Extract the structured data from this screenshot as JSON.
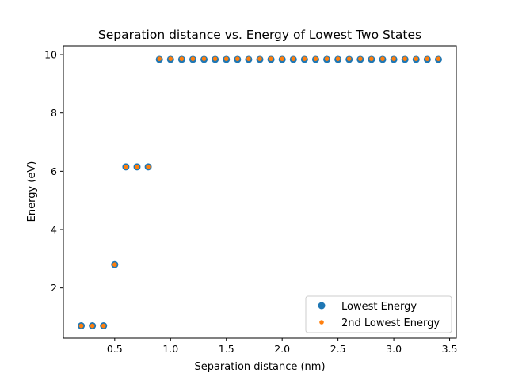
{
  "chart_data": {
    "type": "scatter",
    "title": "Separation distance vs. Energy of Lowest Two States",
    "xlabel": "Separation distance (nm)",
    "ylabel": "Energy (eV)",
    "xlim": [
      0.04,
      3.56
    ],
    "ylim": [
      0.28,
      10.3
    ],
    "xticks": [
      0.5,
      1.0,
      1.5,
      2.0,
      2.5,
      3.0,
      3.5
    ],
    "xtick_labels": [
      "0.5",
      "1.0",
      "1.5",
      "2.0",
      "2.5",
      "3.0",
      "3.5"
    ],
    "yticks": [
      2,
      4,
      6,
      8,
      10
    ],
    "ytick_labels": [
      "2",
      "4",
      "6",
      "8",
      "10"
    ],
    "grid": false,
    "legend_position": "lower-right",
    "x": [
      0.2,
      0.3,
      0.4,
      0.5,
      0.6,
      0.7,
      0.8,
      0.9,
      1.0,
      1.1,
      1.2,
      1.3,
      1.4,
      1.5,
      1.6,
      1.7,
      1.8,
      1.9,
      2.0,
      2.1,
      2.2,
      2.3,
      2.4,
      2.5,
      2.6,
      2.7,
      2.8,
      2.9,
      3.0,
      3.1,
      3.2,
      3.3,
      3.4
    ],
    "series": [
      {
        "name": "Lowest Energy",
        "color": "#1f77b4",
        "marker": "large-circle",
        "values": [
          0.7,
          0.7,
          0.7,
          2.8,
          6.15,
          6.15,
          6.15,
          9.84,
          9.84,
          9.84,
          9.84,
          9.84,
          9.84,
          9.84,
          9.84,
          9.84,
          9.84,
          9.84,
          9.84,
          9.84,
          9.84,
          9.84,
          9.84,
          9.84,
          9.84,
          9.84,
          9.84,
          9.84,
          9.84,
          9.84,
          9.84,
          9.84,
          9.84
        ]
      },
      {
        "name": "2nd Lowest Energy",
        "color": "#ff7f0e",
        "marker": "small-circle",
        "values": [
          0.7,
          0.7,
          0.7,
          2.8,
          6.15,
          6.15,
          6.15,
          9.86,
          9.86,
          9.86,
          9.86,
          9.86,
          9.86,
          9.86,
          9.86,
          9.86,
          9.86,
          9.86,
          9.86,
          9.86,
          9.86,
          9.86,
          9.86,
          9.86,
          9.86,
          9.86,
          9.86,
          9.86,
          9.86,
          9.86,
          9.86,
          9.86,
          9.86
        ]
      }
    ]
  }
}
